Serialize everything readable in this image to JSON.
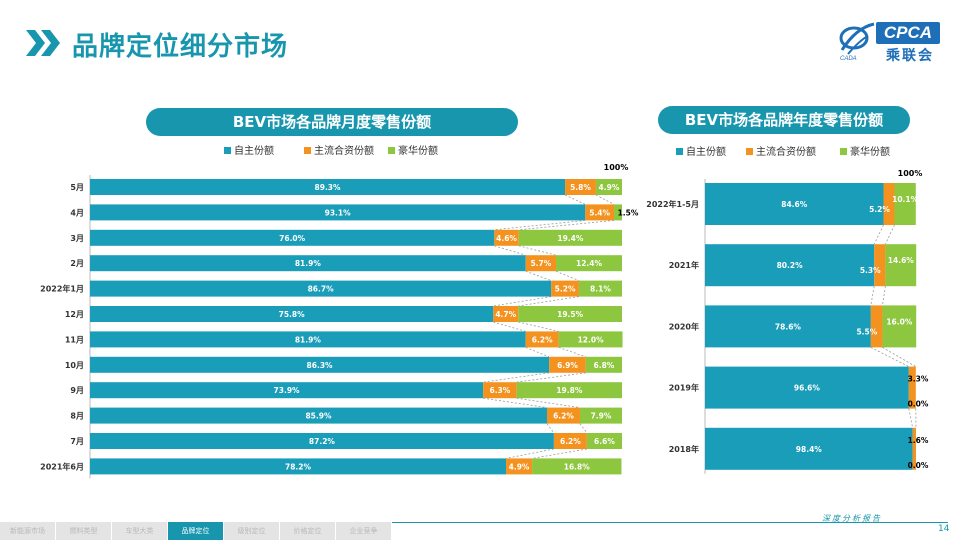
{
  "page": {
    "title": "品牌定位细分市场",
    "page_number": "14",
    "footer_text": "深度分析报告"
  },
  "logo": {
    "text": "CPCA",
    "cn": "乘联会",
    "sub": "CADA"
  },
  "nav": {
    "tabs": [
      "新能源市场",
      "燃料类型",
      "车型大类",
      "品牌定位",
      "级别定位",
      "价格定位",
      "企业竞争"
    ],
    "active": 3
  },
  "colors": {
    "self": "#1A9DB8",
    "mainstream_jv": "#F3921F",
    "luxury": "#8DC63F",
    "accent": "#1896AE"
  },
  "chart_data": [
    {
      "type": "bar",
      "orientation": "horizontal",
      "stacked": true,
      "title": "BEV市场各品牌月度零售份额",
      "legend": [
        "自主份额",
        "主流合资份额",
        "豪华份额"
      ],
      "legend_position": "top",
      "categories": [
        "5月",
        "4月",
        "3月",
        "2月",
        "2022年1月",
        "12月",
        "11月",
        "10月",
        "9月",
        "8月",
        "7月",
        "2021年6月"
      ],
      "series": [
        {
          "name": "自主份额",
          "values": [
            89.3,
            93.1,
            76.0,
            81.9,
            86.7,
            75.8,
            81.9,
            86.3,
            73.9,
            85.9,
            87.2,
            78.2
          ]
        },
        {
          "name": "主流合资份额",
          "values": [
            5.8,
            5.4,
            4.6,
            5.7,
            5.2,
            4.7,
            6.2,
            6.9,
            6.3,
            6.2,
            6.2,
            4.9
          ]
        },
        {
          "name": "豪华份额",
          "values": [
            4.9,
            1.5,
            19.4,
            12.4,
            8.1,
            19.5,
            12.0,
            6.8,
            19.8,
            7.9,
            6.6,
            16.8
          ]
        }
      ],
      "xlim": [
        0,
        100
      ],
      "top_label": "100%"
    },
    {
      "type": "bar",
      "orientation": "horizontal",
      "stacked": true,
      "title": "BEV市场各品牌年度零售份额",
      "legend": [
        "自主份额",
        "主流合资份额",
        "豪华份额"
      ],
      "legend_position": "top",
      "categories": [
        "2022年1-5月",
        "2021年",
        "2020年",
        "2019年",
        "2018年"
      ],
      "series": [
        {
          "name": "自主份额",
          "values": [
            84.6,
            80.2,
            78.6,
            96.6,
            98.4
          ]
        },
        {
          "name": "主流合资份额",
          "values": [
            5.2,
            5.3,
            5.5,
            3.3,
            1.6
          ]
        },
        {
          "name": "豪华份额",
          "values": [
            10.1,
            14.6,
            16.0,
            0.0,
            0.0
          ]
        }
      ],
      "xlim": [
        0,
        100
      ],
      "top_label": "100%"
    }
  ]
}
